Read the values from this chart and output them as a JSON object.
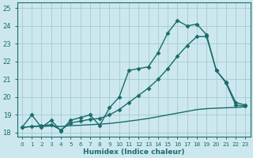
{
  "xlabel": "Humidex (Indice chaleur)",
  "xlim": [
    -0.5,
    23.5
  ],
  "ylim": [
    17.8,
    25.3
  ],
  "xticks": [
    0,
    1,
    2,
    3,
    4,
    5,
    6,
    7,
    8,
    9,
    10,
    11,
    12,
    13,
    14,
    15,
    16,
    17,
    18,
    19,
    20,
    21,
    22,
    23
  ],
  "yticks": [
    18,
    19,
    20,
    21,
    22,
    23,
    24,
    25
  ],
  "bg_color": "#cce8ee",
  "grid_color": "#aacdd6",
  "line_color": "#1a6b6b",
  "line1_x": [
    0,
    1,
    2,
    3,
    4,
    5,
    6,
    7,
    8,
    9,
    10,
    11,
    12,
    13,
    14,
    15,
    16,
    17,
    18,
    19,
    20,
    21,
    22,
    23
  ],
  "line1_y": [
    18.3,
    19.0,
    18.3,
    18.7,
    18.1,
    18.7,
    18.85,
    19.0,
    18.4,
    19.4,
    20.0,
    21.5,
    21.6,
    21.7,
    22.5,
    23.6,
    24.3,
    24.0,
    24.1,
    23.5,
    21.5,
    20.85,
    19.7,
    19.55
  ],
  "line2_x": [
    0,
    1,
    2,
    3,
    4,
    5,
    6,
    7,
    8,
    9,
    10,
    11,
    12,
    13,
    14,
    15,
    16,
    17,
    18,
    19,
    20,
    21,
    22,
    23
  ],
  "line2_y": [
    18.3,
    18.35,
    18.4,
    18.45,
    18.15,
    18.55,
    18.65,
    18.75,
    18.8,
    19.0,
    19.3,
    19.7,
    20.1,
    20.5,
    21.0,
    21.6,
    22.3,
    22.9,
    23.4,
    23.4,
    21.5,
    20.8,
    19.55,
    19.5
  ],
  "line3_x": [
    0,
    1,
    2,
    3,
    4,
    5,
    6,
    7,
    8,
    9,
    10,
    11,
    12,
    13,
    14,
    15,
    16,
    17,
    18,
    19,
    20,
    21,
    22,
    23
  ],
  "line3_y": [
    18.3,
    18.35,
    18.35,
    18.38,
    18.35,
    18.4,
    18.42,
    18.45,
    18.48,
    18.52,
    18.58,
    18.65,
    18.72,
    18.8,
    18.9,
    19.0,
    19.1,
    19.2,
    19.3,
    19.35,
    19.38,
    19.4,
    19.42,
    19.45
  ],
  "marker": "D",
  "markersize": 2.5,
  "linewidth": 1.0
}
